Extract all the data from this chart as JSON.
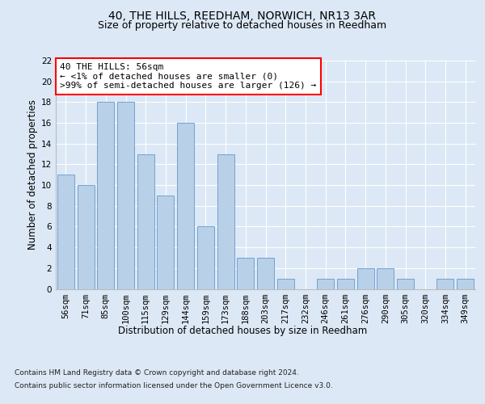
{
  "title1": "40, THE HILLS, REEDHAM, NORWICH, NR13 3AR",
  "title2": "Size of property relative to detached houses in Reedham",
  "xlabel": "Distribution of detached houses by size in Reedham",
  "ylabel": "Number of detached properties",
  "categories": [
    "56sqm",
    "71sqm",
    "85sqm",
    "100sqm",
    "115sqm",
    "129sqm",
    "144sqm",
    "159sqm",
    "173sqm",
    "188sqm",
    "203sqm",
    "217sqm",
    "232sqm",
    "246sqm",
    "261sqm",
    "276sqm",
    "290sqm",
    "305sqm",
    "320sqm",
    "334sqm",
    "349sqm"
  ],
  "values": [
    11,
    10,
    18,
    18,
    13,
    9,
    16,
    6,
    13,
    3,
    3,
    1,
    0,
    1,
    1,
    2,
    2,
    1,
    0,
    1,
    1
  ],
  "bar_color": "#b8d0e8",
  "bar_edge_color": "#6699cc",
  "ylim": [
    0,
    22
  ],
  "yticks": [
    0,
    2,
    4,
    6,
    8,
    10,
    12,
    14,
    16,
    18,
    20,
    22
  ],
  "annotation_text": "40 THE HILLS: 56sqm\n← <1% of detached houses are smaller (0)\n>99% of semi-detached houses are larger (126) →",
  "footnote1": "Contains HM Land Registry data © Crown copyright and database right 2024.",
  "footnote2": "Contains public sector information licensed under the Open Government Licence v3.0.",
  "bg_color": "#dce8f5",
  "grid_color": "#ffffff",
  "title1_fontsize": 10,
  "title2_fontsize": 9,
  "axis_label_fontsize": 8.5,
  "tick_fontsize": 7.5,
  "annotation_fontsize": 8,
  "footnote_fontsize": 6.5
}
